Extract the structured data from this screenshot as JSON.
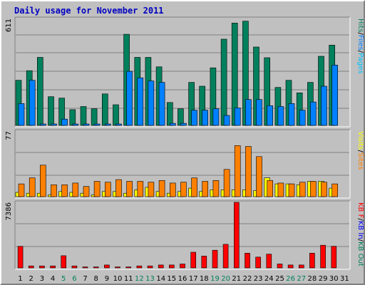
{
  "page": {
    "title": "Daily usage for November 2011"
  },
  "colors": {
    "hits": "#00805c",
    "files": "#0080ff",
    "pages": "#00c0ff",
    "visits": "#ffff00",
    "sites": "#ff8000",
    "kbin": "#0000ff",
    "kbout": "#00805c",
    "kbf": "#ff0000",
    "panel_bg": "#c0c0c0",
    "grid": "#808080",
    "weekend_label": "#00805c",
    "weekday_label": "#000000",
    "title": "#0000c0"
  },
  "chart_data": [
    {
      "type": "bar",
      "panel": "hits",
      "ymax_label": "611",
      "legend": [
        {
          "text": "Hits",
          "color": "#00805c"
        },
        {
          "text": "/",
          "color": "#000000"
        },
        {
          "text": "Files",
          "color": "#0080ff"
        },
        {
          "text": "/",
          "color": "#000000"
        },
        {
          "text": "Pages",
          "color": "#00c0ff"
        }
      ],
      "ylim": [
        0,
        611
      ],
      "series": [
        {
          "name": "Hits",
          "values": [
            258,
            313,
            389,
            164,
            156,
            90,
            108,
            95,
            180,
            118,
            521,
            389,
            389,
            335,
            131,
            95,
            246,
            224,
            329,
            493,
            585,
            596,
            448,
            387,
            217,
            258,
            186,
            246,
            395,
            459,
            0
          ]
        },
        {
          "name": "Files",
          "values": [
            125,
            258,
            8,
            8,
            36,
            8,
            8,
            8,
            8,
            8,
            309,
            272,
            254,
            246,
            12,
            12,
            87,
            87,
            95,
            57,
            100,
            148,
            148,
            113,
            108,
            125,
            87,
            134,
            224,
            345,
            0
          ]
        },
        {
          "name": "Pages",
          "values": [
            0,
            0,
            0,
            0,
            0,
            0,
            0,
            0,
            0,
            0,
            0,
            0,
            0,
            0,
            0,
            0,
            0,
            0,
            0,
            0,
            0,
            0,
            0,
            0,
            0,
            0,
            0,
            0,
            0,
            0,
            0
          ]
        }
      ]
    },
    {
      "type": "bar",
      "panel": "visits",
      "ymax_label": "77",
      "legend": [
        {
          "text": "Visits",
          "color": "#ffff00"
        },
        {
          "text": "/",
          "color": "#000000"
        },
        {
          "text": "Sites",
          "color": "#ff8000"
        }
      ],
      "ylim": [
        0,
        77
      ],
      "series": [
        {
          "name": "Visits",
          "values": [
            5,
            4,
            4,
            2,
            6,
            5,
            4,
            2,
            6,
            6,
            4,
            8,
            11,
            6,
            4,
            6,
            10,
            6,
            8,
            8,
            8,
            8,
            7,
            22,
            15,
            15,
            14,
            18,
            18,
            10,
            0
          ]
        },
        {
          "name": "Sites",
          "values": [
            15,
            22,
            37,
            14,
            14,
            16,
            12,
            18,
            17,
            20,
            18,
            18,
            17,
            19,
            16,
            17,
            22,
            18,
            19,
            32,
            60,
            59,
            47,
            19,
            16,
            15,
            17,
            18,
            17,
            15,
            0
          ]
        }
      ]
    },
    {
      "type": "bar",
      "panel": "kbytes",
      "ymax_label": "7386",
      "legend": [
        {
          "text": "KB F",
          "color": "#ff0000"
        },
        {
          "text": "/",
          "color": "#000000"
        },
        {
          "text": "KB In",
          "color": "#0000ff"
        },
        {
          "text": "/",
          "color": "#000000"
        },
        {
          "text": "KB Out",
          "color": "#00805c"
        }
      ],
      "ylim": [
        0,
        7386
      ],
      "series": [
        {
          "name": "KB F",
          "values": [
            2430,
            221,
            221,
            221,
            1370,
            221,
            110,
            110,
            330,
            110,
            110,
            221,
            221,
            330,
            330,
            440,
            1770,
            1330,
            1990,
            2660,
            7386,
            1660,
            1220,
            1550,
            440,
            330,
            330,
            1660,
            2550,
            2440,
            0
          ]
        },
        {
          "name": "KB In",
          "values": [
            0,
            0,
            0,
            0,
            0,
            0,
            0,
            0,
            0,
            0,
            0,
            0,
            0,
            0,
            0,
            0,
            0,
            0,
            0,
            0,
            0,
            0,
            0,
            0,
            0,
            0,
            0,
            0,
            0,
            0,
            0
          ]
        },
        {
          "name": "KB Out",
          "values": [
            0,
            0,
            0,
            0,
            0,
            0,
            0,
            0,
            0,
            0,
            0,
            0,
            0,
            0,
            0,
            0,
            0,
            0,
            0,
            0,
            0,
            0,
            0,
            0,
            0,
            0,
            0,
            0,
            0,
            0,
            0
          ]
        }
      ]
    }
  ],
  "x_axis": {
    "days": [
      "1",
      "2",
      "3",
      "4",
      "5",
      "6",
      "7",
      "8",
      "9",
      "10",
      "11",
      "12",
      "13",
      "14",
      "15",
      "16",
      "17",
      "18",
      "19",
      "20",
      "21",
      "22",
      "23",
      "24",
      "25",
      "26",
      "27",
      "28",
      "29",
      "30",
      "31"
    ],
    "weekend_days": [
      "5",
      "6",
      "12",
      "13",
      "19",
      "20",
      "26",
      "27"
    ]
  }
}
